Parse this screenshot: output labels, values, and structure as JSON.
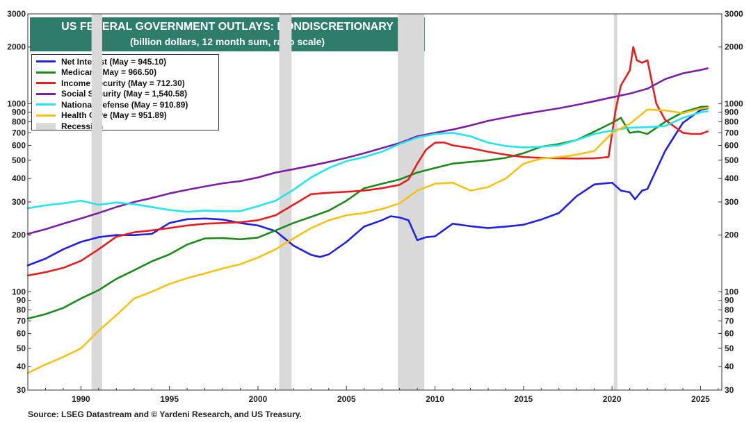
{
  "title": "US FEDERAL GOVERNMENT OUTLAYS: NONDISCRETIONARY",
  "subtitle": "(billion dollars, 12 month sum, ratio scale)",
  "source": "Source: LSEG Datastream and © Yardeni Research, and US Treasury.",
  "chart_data": {
    "type": "line",
    "title": "US FEDERAL GOVERNMENT OUTLAYS: NONDISCRETIONARY",
    "subtitle": "(billion dollars, 12 month sum, ratio scale)",
    "xlabel": "",
    "ylabel": "",
    "y_scale": "log",
    "xlim": [
      1987,
      2026.2
    ],
    "ylim": [
      30,
      3000
    ],
    "x_ticks": [
      1990,
      1995,
      2000,
      2005,
      2010,
      2015,
      2020,
      2025
    ],
    "x_tick_labels": [
      "1990",
      "1995",
      "2000",
      "2005",
      "2010",
      "2015",
      "2020",
      "2025"
    ],
    "y_ticks": [
      30,
      40,
      50,
      60,
      70,
      80,
      90,
      100,
      200,
      300,
      400,
      500,
      600,
      700,
      800,
      900,
      1000,
      2000,
      3000
    ],
    "y_tick_labels": [
      "30",
      "40",
      "50",
      "60",
      "70",
      "80",
      "90",
      "100",
      "200",
      "300",
      "400",
      "500",
      "600",
      "700",
      "800",
      "900",
      "1000",
      "2000",
      "3000"
    ],
    "y_axis_both_sides": true,
    "grid": false,
    "legend_position": "top-left",
    "recessions": [
      [
        1990.6,
        1991.2
      ],
      [
        2001.2,
        2001.9
      ],
      [
        2007.9,
        2009.4
      ],
      [
        2020.1,
        2020.3
      ]
    ],
    "recession_label": "Recession",
    "recession_color": "#d9d9d9",
    "series": [
      {
        "name": "Net Interest  (May = 945.10)",
        "color": "#1f1fe6",
        "x": [
          1987,
          1988,
          1989,
          1990,
          1991,
          1992,
          1993,
          1994,
          1995,
          1996,
          1997,
          1998,
          1999,
          2000,
          2001,
          2002,
          2003,
          2003.5,
          2004,
          2005,
          2006,
          2007,
          2007.5,
          2008,
          2008.5,
          2009,
          2009.5,
          2010,
          2011,
          2012,
          2013,
          2014,
          2015,
          2016,
          2017,
          2018,
          2019,
          2020,
          2020.5,
          2021,
          2021.3,
          2021.7,
          2022,
          2023,
          2024,
          2025,
          2025.4
        ],
        "y": [
          138,
          150,
          168,
          184,
          195,
          200,
          200,
          203,
          232,
          243,
          245,
          242,
          232,
          225,
          210,
          176,
          157,
          153,
          158,
          184,
          222,
          240,
          252,
          248,
          240,
          188,
          195,
          197,
          230,
          223,
          218,
          222,
          227,
          242,
          262,
          322,
          372,
          380,
          345,
          338,
          310,
          345,
          352,
          560,
          790,
          925,
          945
        ]
      },
      {
        "name": "Medicare (May = 966.50)",
        "color": "#1b8a1b",
        "x": [
          1987,
          1988,
          1989,
          1990,
          1991,
          1992,
          1993,
          1994,
          1995,
          1996,
          1997,
          1998,
          1999,
          2000,
          2001,
          2002,
          2003,
          2004,
          2005,
          2006,
          2007,
          2008,
          2009,
          2010,
          2011,
          2012,
          2013,
          2014,
          2015,
          2016,
          2017,
          2018,
          2019,
          2020,
          2020.5,
          2021,
          2021.5,
          2022,
          2023,
          2024,
          2025,
          2025.4
        ],
        "y": [
          72,
          76,
          82,
          92,
          102,
          117,
          130,
          145,
          158,
          178,
          192,
          193,
          190,
          194,
          212,
          232,
          250,
          270,
          305,
          355,
          375,
          395,
          430,
          455,
          480,
          490,
          500,
          515,
          545,
          590,
          610,
          640,
          710,
          790,
          840,
          700,
          710,
          690,
          800,
          900,
          960,
          966
        ]
      },
      {
        "name": "Income Security (May = 712.30)",
        "color": "#e81c1c",
        "x": [
          1987,
          1988,
          1989,
          1990,
          1991,
          1992,
          1993,
          1994,
          1995,
          1996,
          1997,
          1998,
          1999,
          2000,
          2001,
          2002,
          2003,
          2004,
          2005,
          2006,
          2007,
          2008,
          2008.5,
          2009,
          2009.5,
          2010,
          2010.5,
          2011,
          2012,
          2013,
          2014,
          2015,
          2016,
          2017,
          2018,
          2019,
          2019.8,
          2020.2,
          2020.5,
          2021,
          2021.2,
          2021.4,
          2021.7,
          2022,
          2022.5,
          2023,
          2024,
          2024.5,
          2025,
          2025.4
        ],
        "y": [
          122,
          127,
          134,
          146,
          168,
          196,
          207,
          212,
          218,
          225,
          230,
          232,
          234,
          240,
          255,
          290,
          330,
          336,
          340,
          345,
          355,
          370,
          395,
          480,
          570,
          620,
          622,
          600,
          580,
          555,
          535,
          520,
          515,
          512,
          510,
          512,
          520,
          920,
          1250,
          1500,
          2000,
          1700,
          1650,
          1700,
          1000,
          820,
          700,
          690,
          690,
          712
        ]
      },
      {
        "name": "Social Security (May = 1,540.58)",
        "color": "#7b1fa2",
        "x": [
          1987,
          1988,
          1989,
          1990,
          1991,
          1992,
          1993,
          1994,
          1995,
          1996,
          1997,
          1998,
          1999,
          2000,
          2001,
          2002,
          2003,
          2004,
          2005,
          2006,
          2007,
          2008,
          2009,
          2010,
          2011,
          2012,
          2013,
          2014,
          2015,
          2016,
          2017,
          2018,
          2019,
          2020,
          2021,
          2022,
          2023,
          2024,
          2025,
          2025.4
        ],
        "y": [
          203,
          215,
          230,
          245,
          262,
          282,
          300,
          315,
          333,
          348,
          363,
          377,
          387,
          405,
          430,
          448,
          468,
          490,
          515,
          545,
          580,
          617,
          670,
          700,
          728,
          765,
          810,
          845,
          880,
          912,
          945,
          985,
          1030,
          1080,
          1130,
          1200,
          1350,
          1450,
          1510,
          1540
        ]
      },
      {
        "name": "National Defense (May = 910.89)",
        "color": "#22e5ef",
        "x": [
          1987,
          1988,
          1989,
          1990,
          1991,
          1992,
          1993,
          1994,
          1995,
          1996,
          1997,
          1998,
          1999,
          2000,
          2001,
          2002,
          2003,
          2004,
          2005,
          2006,
          2007,
          2008,
          2009,
          2010,
          2011,
          2012,
          2013,
          2014,
          2015,
          2016,
          2017,
          2018,
          2019,
          2020,
          2021,
          2022,
          2023,
          2024,
          2025,
          2025.4
        ],
        "y": [
          278,
          288,
          295,
          305,
          290,
          298,
          292,
          282,
          272,
          266,
          270,
          268,
          268,
          285,
          305,
          348,
          405,
          455,
          495,
          520,
          555,
          610,
          660,
          690,
          700,
          670,
          620,
          595,
          585,
          590,
          600,
          640,
          690,
          720,
          745,
          750,
          760,
          840,
          900,
          911
        ]
      },
      {
        "name": "Health Care (May = 951.89)",
        "color": "#f5c211",
        "x": [
          1987,
          1988,
          1989,
          1990,
          1991,
          1992,
          1993,
          1994,
          1995,
          1996,
          1997,
          1998,
          1999,
          2000,
          2001,
          2002,
          2003,
          2004,
          2005,
          2006,
          2007,
          2008,
          2009,
          2010,
          2011,
          2012,
          2013,
          2014,
          2015,
          2016,
          2017,
          2018,
          2019,
          2020,
          2021,
          2022,
          2023,
          2024,
          2025,
          2025.4
        ],
        "y": [
          37,
          41,
          45,
          50,
          62,
          75,
          92,
          100,
          110,
          118,
          125,
          133,
          140,
          152,
          168,
          192,
          218,
          240,
          255,
          262,
          275,
          295,
          345,
          375,
          380,
          345,
          360,
          400,
          480,
          510,
          520,
          535,
          560,
          700,
          780,
          930,
          920,
          890,
          940,
          952
        ]
      }
    ]
  }
}
